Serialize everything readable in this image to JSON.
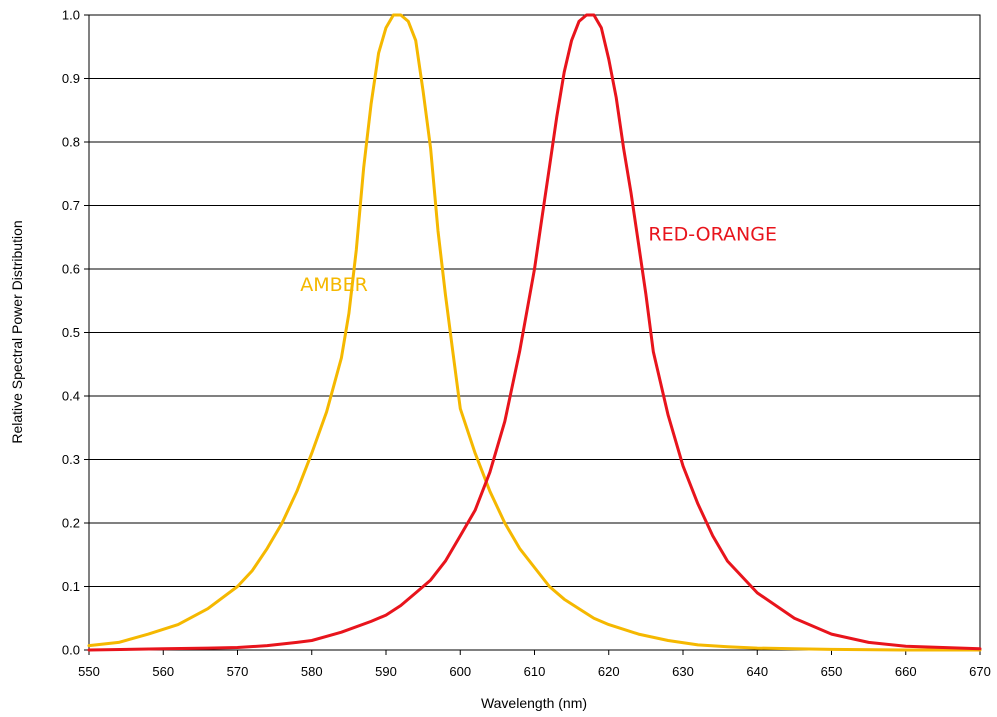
{
  "chart_data": {
    "type": "line",
    "title": "",
    "xlabel": "Wavelength (nm)",
    "ylabel": "Relative Spectral Power Distribution",
    "xlim": [
      550,
      670
    ],
    "ylim": [
      0,
      1
    ],
    "x_ticks": [
      550,
      560,
      570,
      580,
      590,
      600,
      610,
      620,
      630,
      640,
      650,
      660,
      670
    ],
    "y_ticks": [
      "0.0",
      "0.1",
      "0.2",
      "0.3",
      "0.4",
      "0.5",
      "0.6",
      "0.7",
      "0.8",
      "0.9",
      "1.0"
    ],
    "grid": "horizontal",
    "legend": "none",
    "series": [
      {
        "name": "AMBER",
        "color": "#F5B800",
        "x": [
          550,
          554,
          558,
          562,
          566,
          570,
          572,
          574,
          576,
          578,
          580,
          582,
          584,
          585,
          586,
          587,
          588,
          589,
          590,
          591,
          592,
          593,
          594,
          595,
          596,
          597,
          598,
          599,
          600,
          602,
          604,
          606,
          608,
          610,
          612,
          614,
          616,
          618,
          620,
          624,
          628,
          632,
          636,
          640,
          645,
          650,
          660,
          670
        ],
        "y": [
          0.007,
          0.012,
          0.025,
          0.04,
          0.065,
          0.1,
          0.125,
          0.16,
          0.2,
          0.25,
          0.31,
          0.375,
          0.46,
          0.53,
          0.63,
          0.76,
          0.86,
          0.94,
          0.98,
          1.0,
          1.0,
          0.99,
          0.96,
          0.88,
          0.79,
          0.66,
          0.56,
          0.47,
          0.38,
          0.31,
          0.25,
          0.2,
          0.16,
          0.13,
          0.1,
          0.08,
          0.065,
          0.05,
          0.04,
          0.025,
          0.015,
          0.008,
          0.005,
          0.003,
          0.002,
          0.001,
          0.0,
          0.0
        ]
      },
      {
        "name": "RED-ORANGE",
        "color": "#E8141C",
        "x": [
          550,
          560,
          566,
          570,
          574,
          578,
          580,
          584,
          588,
          590,
          592,
          594,
          596,
          598,
          600,
          602,
          604,
          606,
          608,
          610,
          611,
          612,
          613,
          614,
          615,
          616,
          617,
          618,
          619,
          620,
          621,
          622,
          623,
          624,
          625,
          626,
          628,
          630,
          632,
          634,
          636,
          640,
          645,
          650,
          655,
          660,
          670
        ],
        "y": [
          0.0,
          0.002,
          0.003,
          0.004,
          0.007,
          0.012,
          0.015,
          0.028,
          0.045,
          0.055,
          0.07,
          0.09,
          0.11,
          0.14,
          0.18,
          0.22,
          0.28,
          0.36,
          0.47,
          0.6,
          0.68,
          0.76,
          0.84,
          0.91,
          0.96,
          0.99,
          1.0,
          1.0,
          0.98,
          0.93,
          0.87,
          0.79,
          0.72,
          0.64,
          0.56,
          0.47,
          0.37,
          0.29,
          0.23,
          0.18,
          0.14,
          0.09,
          0.05,
          0.025,
          0.012,
          0.006,
          0.002
        ]
      }
    ],
    "annotations": [
      {
        "text": "AMBER",
        "x": 583,
        "y": 0.565
      },
      {
        "text": "RED-ORANGE",
        "x": 634,
        "y": 0.645
      }
    ]
  }
}
